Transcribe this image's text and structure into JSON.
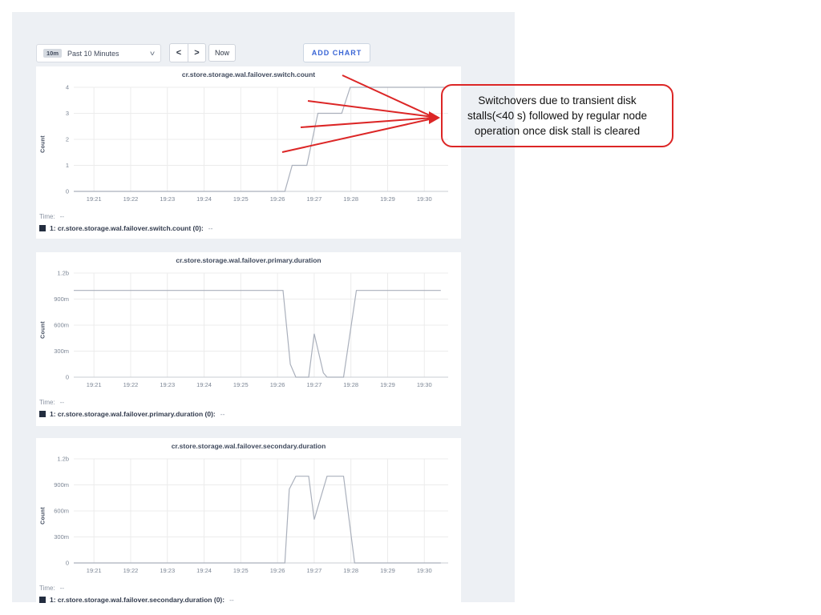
{
  "colors": {
    "accent_blue": "#3a66d6",
    "panel_bg": "#edf0f4",
    "card_bg": "#ffffff",
    "line": "#aab0bc",
    "grid": "#ececec",
    "axis_line": "#c9cdd3",
    "axis_text": "#7b8594",
    "title_text": "#414b5e",
    "legend_swatch": "#232d3f",
    "annotation_red": "#dc2626"
  },
  "toolbar": {
    "range_badge": "10m",
    "range_label": "Past 10 Minutes",
    "chevron_down_icon": "v",
    "prev_label": "<",
    "next_label": ">",
    "now_label": "Now",
    "add_chart_label": "ADD CHART"
  },
  "annotation": {
    "text": "Switchovers due to transient disk stalls(<40 s) followed by regular node operation once disk stall is cleared"
  },
  "charts": [
    {
      "title": "cr.store.storage.wal.failover.switch.count",
      "ylabel": "Count",
      "time_label": "Time:",
      "time_value": "--",
      "legend_label": "1: cr.store.storage.wal.failover.switch.count (0):",
      "legend_value": "--"
    },
    {
      "title": "cr.store.storage.wal.failover.primary.duration",
      "ylabel": "Count",
      "time_label": "Time:",
      "time_value": "--",
      "legend_label": "1: cr.store.storage.wal.failover.primary.duration (0):",
      "legend_value": "--"
    },
    {
      "title": "cr.store.storage.wal.failover.secondary.duration",
      "ylabel": "Count",
      "time_label": "Time:",
      "time_value": "--",
      "legend_label": "1: cr.store.storage.wal.failover.secondary.duration (0):",
      "legend_value": "--"
    }
  ],
  "chart_data": [
    {
      "type": "line",
      "title": "cr.store.storage.wal.failover.switch.count",
      "xlabel": "",
      "ylabel": "Count",
      "legend_position": "bottom",
      "grid": true,
      "xlim": [
        20.45,
        30.65
      ],
      "ylim": [
        0,
        4
      ],
      "xticks": [
        {
          "v": 21,
          "label": "19:21"
        },
        {
          "v": 22,
          "label": "19:22"
        },
        {
          "v": 23,
          "label": "19:23"
        },
        {
          "v": 24,
          "label": "19:24"
        },
        {
          "v": 25,
          "label": "19:25"
        },
        {
          "v": 26,
          "label": "19:26"
        },
        {
          "v": 27,
          "label": "19:27"
        },
        {
          "v": 28,
          "label": "19:28"
        },
        {
          "v": 29,
          "label": "19:29"
        },
        {
          "v": 30,
          "label": "19:30"
        }
      ],
      "yticks": [
        {
          "v": 0,
          "label": "0"
        },
        {
          "v": 1,
          "label": "1"
        },
        {
          "v": 2,
          "label": "2"
        },
        {
          "v": 3,
          "label": "3"
        },
        {
          "v": 4,
          "label": "4"
        }
      ],
      "series": [
        {
          "name": "1: cr.store.storage.wal.failover.switch.count (0)",
          "points": [
            [
              20.45,
              0
            ],
            [
              26.2,
              0
            ],
            [
              26.4,
              1
            ],
            [
              26.8,
              1
            ],
            [
              27.1,
              3
            ],
            [
              27.75,
              3
            ],
            [
              27.98,
              4
            ],
            [
              30.55,
              4
            ]
          ]
        }
      ]
    },
    {
      "type": "line",
      "title": "cr.store.storage.wal.failover.primary.duration",
      "xlabel": "",
      "ylabel": "Count",
      "legend_position": "bottom",
      "grid": true,
      "xlim": [
        20.45,
        30.65
      ],
      "ylim": [
        0,
        1.2
      ],
      "xticks": [
        {
          "v": 21,
          "label": "19:21"
        },
        {
          "v": 22,
          "label": "19:22"
        },
        {
          "v": 23,
          "label": "19:23"
        },
        {
          "v": 24,
          "label": "19:24"
        },
        {
          "v": 25,
          "label": "19:25"
        },
        {
          "v": 26,
          "label": "19:26"
        },
        {
          "v": 27,
          "label": "19:27"
        },
        {
          "v": 28,
          "label": "19:28"
        },
        {
          "v": 29,
          "label": "19:29"
        },
        {
          "v": 30,
          "label": "19:30"
        }
      ],
      "yticks": [
        {
          "v": 0,
          "label": "0"
        },
        {
          "v": 0.3,
          "label": "300m"
        },
        {
          "v": 0.6,
          "label": "600m"
        },
        {
          "v": 0.9,
          "label": "900m"
        },
        {
          "v": 1.2,
          "label": "1.2b"
        }
      ],
      "series": [
        {
          "name": "1: cr.store.storage.wal.failover.primary.duration (0)",
          "points": [
            [
              20.45,
              1.0
            ],
            [
              26.15,
              1.0
            ],
            [
              26.35,
              0.15
            ],
            [
              26.5,
              0
            ],
            [
              26.85,
              0
            ],
            [
              27.0,
              0.5
            ],
            [
              27.25,
              0.05
            ],
            [
              27.35,
              0
            ],
            [
              27.8,
              0
            ],
            [
              28.15,
              1.0
            ],
            [
              30.45,
              1.0
            ]
          ]
        }
      ]
    },
    {
      "type": "line",
      "title": "cr.store.storage.wal.failover.secondary.duration",
      "xlabel": "",
      "ylabel": "Count",
      "legend_position": "bottom",
      "grid": true,
      "xlim": [
        20.45,
        30.65
      ],
      "ylim": [
        0,
        1.2
      ],
      "xticks": [
        {
          "v": 21,
          "label": "19:21"
        },
        {
          "v": 22,
          "label": "19:22"
        },
        {
          "v": 23,
          "label": "19:23"
        },
        {
          "v": 24,
          "label": "19:24"
        },
        {
          "v": 25,
          "label": "19:25"
        },
        {
          "v": 26,
          "label": "19:26"
        },
        {
          "v": 27,
          "label": "19:27"
        },
        {
          "v": 28,
          "label": "19:28"
        },
        {
          "v": 29,
          "label": "19:29"
        },
        {
          "v": 30,
          "label": "19:30"
        }
      ],
      "yticks": [
        {
          "v": 0,
          "label": "0"
        },
        {
          "v": 0.3,
          "label": "300m"
        },
        {
          "v": 0.6,
          "label": "600m"
        },
        {
          "v": 0.9,
          "label": "900m"
        },
        {
          "v": 1.2,
          "label": "1.2b"
        }
      ],
      "series": [
        {
          "name": "1: cr.store.storage.wal.failover.secondary.duration (0)",
          "points": [
            [
              20.45,
              0
            ],
            [
              26.2,
              0
            ],
            [
              26.32,
              0.85
            ],
            [
              26.5,
              1.0
            ],
            [
              26.85,
              1.0
            ],
            [
              27.0,
              0.5
            ],
            [
              27.35,
              1.0
            ],
            [
              27.8,
              1.0
            ],
            [
              28.1,
              0
            ],
            [
              30.45,
              0
            ]
          ]
        }
      ]
    }
  ]
}
